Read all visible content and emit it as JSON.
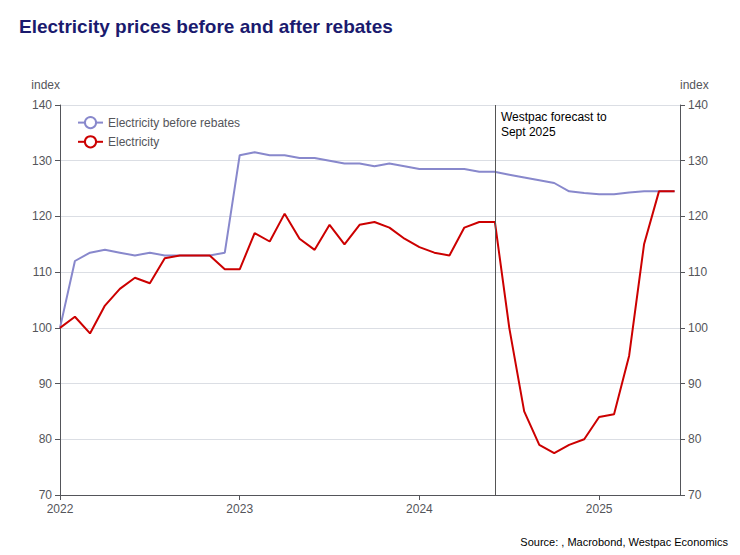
{
  "chart_data": {
    "type": "line",
    "title": "Electricity prices before and after rebates",
    "title_color": "#1a1a6e",
    "ylabel": "index",
    "y2label": "index",
    "source": "Source: , Macrobond, Westpac Economics",
    "xlim": [
      2022.0,
      2025.45
    ],
    "xticks": [
      2022,
      2023,
      2024,
      2025
    ],
    "ylim": [
      70,
      140
    ],
    "yticks": [
      70,
      80,
      90,
      100,
      110,
      120,
      130,
      140
    ],
    "y2lim": [
      70,
      140
    ],
    "y2ticks": [
      70,
      80,
      90,
      100,
      110,
      120,
      130,
      140
    ],
    "grid": true,
    "legend": "upper left",
    "annotations": [
      {
        "x": 2024.42,
        "text": "Westpac forecast to\nSept 2025"
      }
    ],
    "series": [
      {
        "name": "Electricity before rebates",
        "color": "#8888cc",
        "x": [
          2022.0,
          2022.083,
          2022.167,
          2022.25,
          2022.333,
          2022.417,
          2022.5,
          2022.583,
          2022.667,
          2022.75,
          2022.833,
          2022.917,
          2023.0,
          2023.083,
          2023.167,
          2023.25,
          2023.333,
          2023.417,
          2023.5,
          2023.583,
          2023.667,
          2023.75,
          2023.833,
          2023.917,
          2024.0,
          2024.083,
          2024.167,
          2024.25,
          2024.333,
          2024.417,
          2024.5,
          2024.583,
          2024.667,
          2024.75,
          2024.833,
          2024.917,
          2025.0,
          2025.083,
          2025.167,
          2025.25,
          2025.333,
          2025.42
        ],
        "values": [
          100.0,
          112.0,
          113.5,
          114.0,
          113.5,
          113.0,
          113.5,
          113.0,
          113.0,
          113.0,
          113.0,
          113.5,
          131.0,
          131.5,
          131.0,
          131.0,
          130.5,
          130.5,
          130.0,
          129.5,
          129.5,
          129.0,
          129.5,
          129.0,
          128.5,
          128.5,
          128.5,
          128.5,
          128.0,
          128.0,
          127.5,
          127.0,
          126.5,
          126.0,
          124.5,
          124.2,
          124.0,
          124.0,
          124.3,
          124.5,
          124.5,
          124.5
        ]
      },
      {
        "name": "Electricity",
        "color": "#cc0000",
        "x": [
          2022.0,
          2022.083,
          2022.167,
          2022.25,
          2022.333,
          2022.417,
          2022.5,
          2022.583,
          2022.667,
          2022.75,
          2022.833,
          2022.917,
          2023.0,
          2023.083,
          2023.167,
          2023.25,
          2023.333,
          2023.417,
          2023.5,
          2023.583,
          2023.667,
          2023.75,
          2023.833,
          2023.917,
          2024.0,
          2024.083,
          2024.167,
          2024.25,
          2024.333,
          2024.42,
          2024.5,
          2024.583,
          2024.667,
          2024.75,
          2024.833,
          2024.917,
          2025.0,
          2025.083,
          2025.167,
          2025.25,
          2025.333,
          2025.42
        ],
        "values": [
          100.0,
          102.0,
          99.0,
          104.0,
          107.0,
          109.0,
          108.0,
          112.5,
          113.0,
          113.0,
          113.0,
          110.5,
          110.5,
          117.0,
          115.5,
          120.5,
          116.0,
          114.0,
          118.5,
          115.0,
          118.5,
          119.0,
          118.0,
          116.0,
          114.5,
          113.5,
          113.0,
          118.0,
          119.0,
          119.0,
          100.0,
          85.0,
          79.0,
          77.5,
          79.0,
          80.0,
          84.0,
          84.5,
          95.0,
          115.0,
          124.5,
          124.5
        ]
      }
    ]
  }
}
